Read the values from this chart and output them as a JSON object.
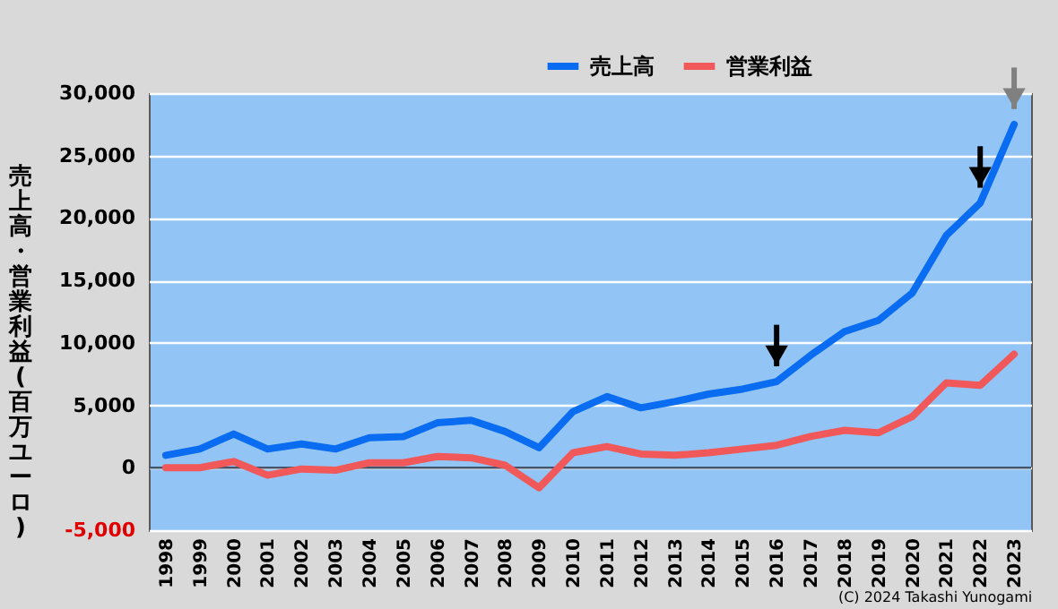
{
  "chart_data": {
    "type": "line",
    "ylabel": "売上高・営業利益(百万ユーロ)",
    "annotations": [
      "(C) 2024 Takashi Yunogami"
    ],
    "categories": [
      "1998",
      "1999",
      "2000",
      "2001",
      "2002",
      "2003",
      "2004",
      "2005",
      "2006",
      "2007",
      "2008",
      "2009",
      "2010",
      "2011",
      "2012",
      "2013",
      "2014",
      "2015",
      "2016",
      "2017",
      "2018",
      "2019",
      "2020",
      "2021",
      "2022",
      "2023"
    ],
    "series": [
      {
        "name": "売上高",
        "color": "#0a6cf0",
        "values": [
          1000,
          1500,
          2700,
          1500,
          1900,
          1500,
          2400,
          2500,
          3600,
          3800,
          2900,
          1600,
          4500,
          5700,
          4800,
          5300,
          5900,
          6300,
          6900,
          9000,
          10900,
          11800,
          14000,
          18600,
          21200,
          27500
        ]
      },
      {
        "name": "営業利益",
        "color": "#f0585a",
        "values": [
          0,
          0,
          500,
          -600,
          -100,
          -200,
          400,
          400,
          900,
          800,
          200,
          -1600,
          1200,
          1700,
          1100,
          1000,
          1200,
          1500,
          1800,
          2500,
          3000,
          2800,
          4100,
          6800,
          6600,
          9100
        ]
      }
    ],
    "ylim": [
      -5000,
      30000
    ],
    "yticks": [
      {
        "value": -5000,
        "label": "-5,000"
      },
      {
        "value": 0,
        "label": "0"
      },
      {
        "value": 5000,
        "label": "5,000"
      },
      {
        "value": 10000,
        "label": "10,000"
      },
      {
        "value": 15000,
        "label": "15,000"
      },
      {
        "value": 20000,
        "label": "20,000"
      },
      {
        "value": 25000,
        "label": "25,000"
      },
      {
        "value": 30000,
        "label": "30,000"
      }
    ],
    "ref_lines": [
      {
        "axis": "y",
        "value": 0,
        "color": "#44546a"
      }
    ],
    "grid": "y",
    "legend": "top",
    "marker": "none",
    "line_style": "solid"
  }
}
